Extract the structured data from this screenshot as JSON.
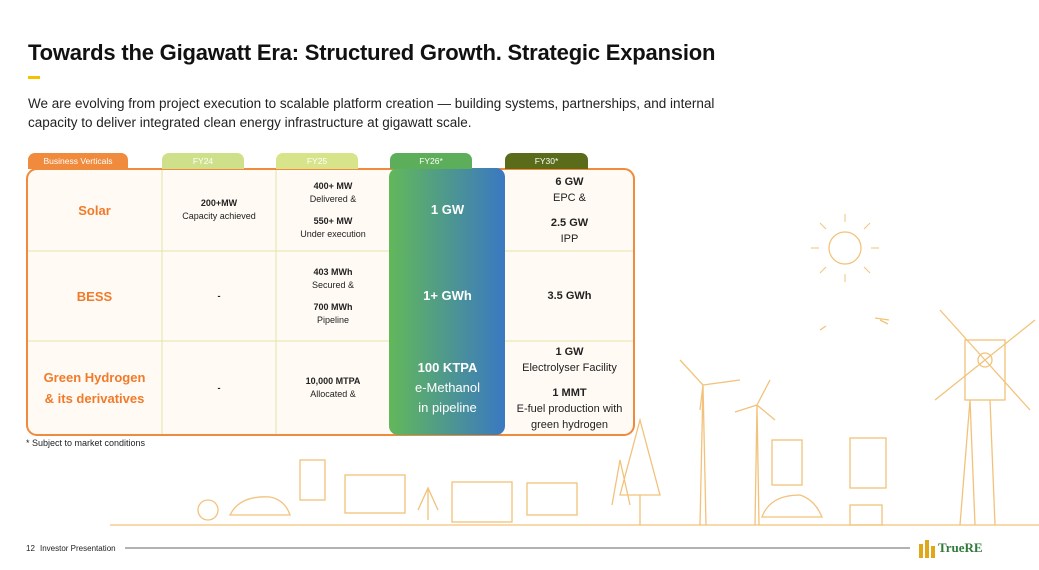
{
  "header": {
    "title": "Towards the Gigawatt Era: Structured Growth. Strategic Expansion",
    "subtitle_lines": [
      "We are evolving from project execution to scalable platform creation — building systems, partnerships, and internal",
      "capacity to deliver integrated clean energy infrastructure at gigawatt scale."
    ]
  },
  "table": {
    "columns": [
      "Business Verticals",
      "FY24",
      "FY25",
      "FY26*",
      "FY30*"
    ],
    "rows": [
      [
        [
          [
            "Solar"
          ]
        ],
        [
          [
            "200+MW",
            "Capacity achieved"
          ]
        ],
        [
          [
            "400+ MW",
            "Delivered &"
          ],
          [
            "550+ MW",
            "Under execution"
          ]
        ],
        [
          [
            "1 GW"
          ]
        ],
        [
          [
            "6 GW",
            "EPC &"
          ],
          [
            "2.5 GW",
            "IPP"
          ]
        ]
      ],
      [
        [
          [
            "BESS"
          ]
        ],
        [
          [
            "-"
          ]
        ],
        [
          [
            "403 MWh",
            "Secured &"
          ],
          [
            "700 MWh",
            "Pipeline"
          ]
        ],
        [
          [
            "1+ GWh"
          ]
        ],
        [
          [
            "3.5 GWh"
          ]
        ]
      ],
      [
        [
          [
            "Green Hydrogen",
            "& its derivatives"
          ]
        ],
        [
          [
            "-"
          ]
        ],
        [
          [
            "10,000 MTPA",
            "Allocated &"
          ]
        ],
        [
          [
            "100 KTPA",
            "e-Methanol",
            "in pipeline"
          ]
        ],
        [
          [
            "1 GW",
            "Electrolyser Facility"
          ],
          [
            "1 MMT",
            "E-fuel production with",
            "green hydrogen"
          ]
        ]
      ]
    ]
  },
  "footnote": "* Subject to market conditions",
  "footer": {
    "page": "12",
    "label": "Investor Presentation",
    "logo": "TrueRE"
  }
}
